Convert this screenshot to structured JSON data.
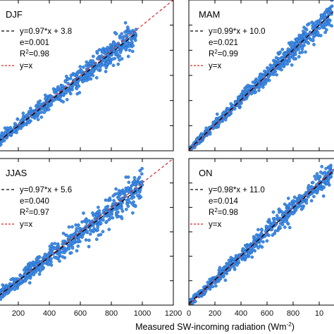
{
  "colors": {
    "points_fill": "#3f8fe6",
    "points_stroke": "#1f5fbf",
    "fit_line": "#000000",
    "identity_line": "#d62728",
    "axes": "#000000"
  },
  "chart_data": [
    {
      "type": "scatter",
      "panel": "DJF",
      "xlim": [
        0,
        1200
      ],
      "ylim": [
        0,
        1200
      ],
      "xticks": [
        "200",
        "400",
        "600",
        "800",
        "1000",
        "1200"
      ],
      "fit": {
        "slope": 0.97,
        "intercept": 3.8
      },
      "legend": {
        "fit_label": "y=0.97*x + 3.8",
        "e_label": "e=0.001",
        "r2_prefix": "R",
        "r2_sup": "2",
        "r2_value": "=0.98",
        "identity_label": "y=x"
      },
      "x_range": [
        0,
        960
      ],
      "noise": 35
    },
    {
      "type": "scatter",
      "panel": "MAM",
      "xlim": [
        0,
        1200
      ],
      "ylim": [
        0,
        1200
      ],
      "xticks": [
        "0",
        "200",
        "400",
        "600",
        "800",
        "10"
      ],
      "fit": {
        "slope": 0.99,
        "intercept": 10.0
      },
      "legend": {
        "fit_label": "y=0.99*x + 10.0",
        "e_label": "e=0.021",
        "r2_prefix": "R",
        "r2_sup": "2",
        "r2_value": "=0.99",
        "identity_label": "y=x"
      },
      "x_range": [
        0,
        1100
      ],
      "noise": 28
    },
    {
      "type": "scatter",
      "panel": "JJAS",
      "xlim": [
        0,
        1200
      ],
      "ylim": [
        0,
        1200
      ],
      "xticks": [
        "200",
        "400",
        "600",
        "800",
        "1000",
        "1200"
      ],
      "fit": {
        "slope": 0.97,
        "intercept": 5.6
      },
      "legend": {
        "fit_label": "y=0.97*x + 5.6",
        "e_label": "e=0.040",
        "r2_prefix": "R",
        "r2_sup": "2",
        "r2_value": "=0.97",
        "identity_label": "y=x"
      },
      "x_range": [
        0,
        1000
      ],
      "noise": 45
    },
    {
      "type": "scatter",
      "panel": "ON",
      "xlim": [
        0,
        1200
      ],
      "ylim": [
        0,
        1200
      ],
      "xticks": [
        "0",
        "200",
        "400",
        "600",
        "800",
        "10"
      ],
      "fit": {
        "slope": 0.98,
        "intercept": 11.0
      },
      "legend": {
        "fit_label": "y=0.98*x + 11.0",
        "e_label": "e=0.014",
        "r2_prefix": "R",
        "r2_sup": "2",
        "r2_value": "=0.98",
        "identity_label": "y=x"
      },
      "x_range": [
        0,
        1100
      ],
      "noise": 30
    }
  ],
  "x_axis_title": "Measured SW-incoming radiation (Wm",
  "x_axis_title_sup": "-2",
  "x_axis_title_close": ")"
}
